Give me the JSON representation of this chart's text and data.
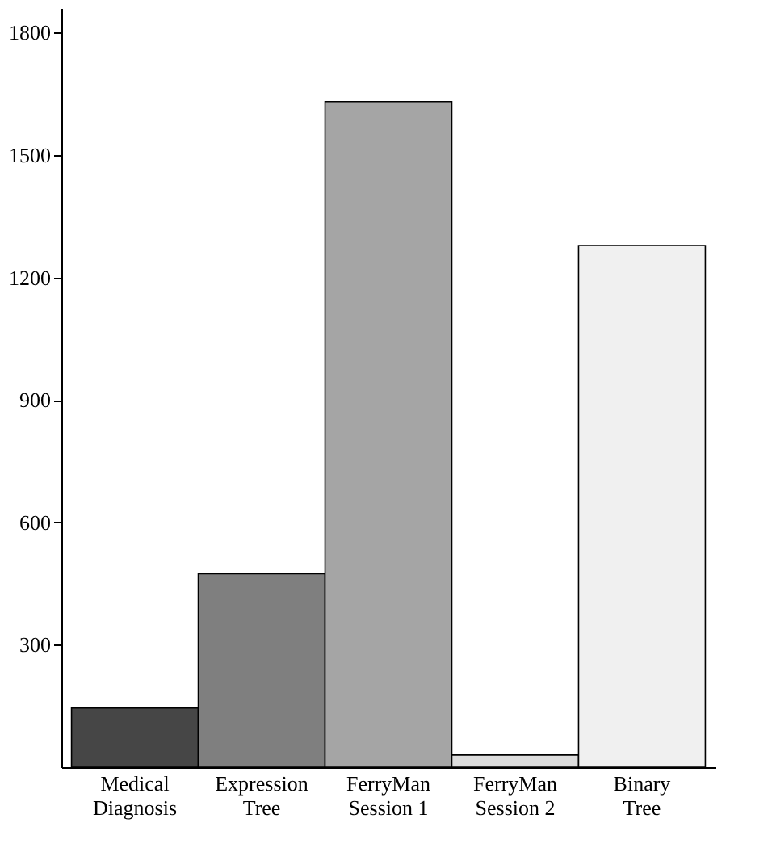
{
  "chart_data": {
    "type": "bar",
    "categories": [
      "Medical\nDiagnosis",
      "Expression\nTree",
      "FerryMan\nSession 1",
      "FerryMan\nSession 2",
      "Binary\nTree"
    ],
    "values": [
      145,
      474,
      1631,
      30,
      1278
    ],
    "colors": [
      "#464646",
      "#7f7f7f",
      "#a5a5a5",
      "#dcdcdc",
      "#f0f0f0"
    ],
    "ylim": [
      0,
      1860
    ],
    "yticks": [
      300,
      600,
      900,
      1200,
      1500,
      1800
    ],
    "grid": false,
    "legend": false
  }
}
